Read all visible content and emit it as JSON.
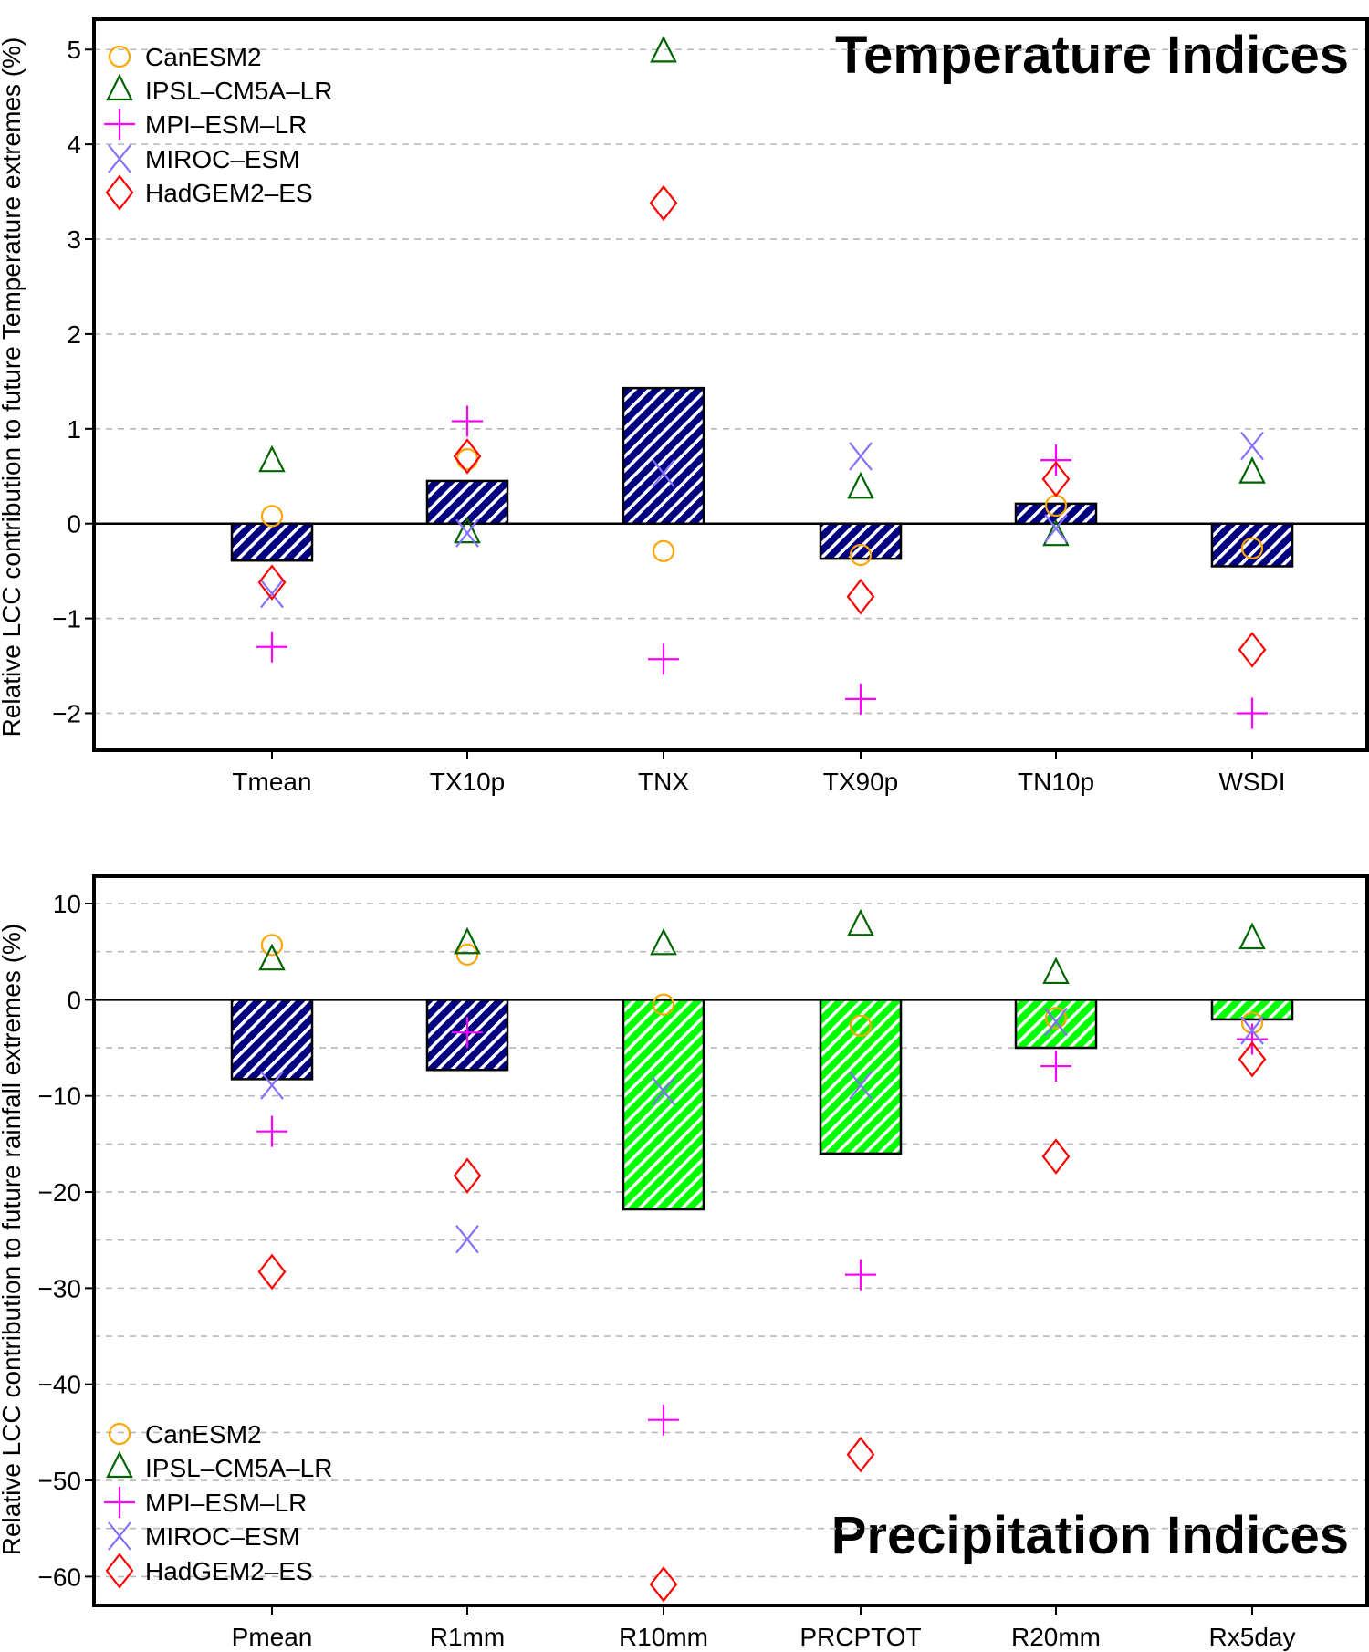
{
  "chart_data": [
    {
      "type": "bar",
      "title": "Temperature Indices",
      "ylabel": "Relative LCC contribution to future Temperature extremes (%)",
      "xlabel": "",
      "ylim": [
        -2.39,
        5.32
      ],
      "yticks": [
        -2,
        -1,
        0,
        1,
        2,
        3,
        4,
        5
      ],
      "grid": "horizontal dashed",
      "legend_position": "top-left",
      "categories": [
        "Tmean",
        "TX10p",
        "TNX",
        "TX90p",
        "TN10p",
        "WSDI"
      ],
      "bars": {
        "values": [
          -0.39,
          0.45,
          1.43,
          -0.37,
          0.21,
          -0.45
        ],
        "fill_colors": [
          "#000080",
          "#000080",
          "#000080",
          "#000080",
          "#000080",
          "#000080"
        ],
        "pattern": "diagonal hatch"
      },
      "series": [
        {
          "name": "CanESM2",
          "marker": "circle",
          "color": "#ffa500",
          "values": [
            0.08,
            0.68,
            -0.29,
            -0.33,
            0.19,
            -0.26
          ]
        },
        {
          "name": "IPSL-CM5A-LR",
          "marker": "triangle",
          "color": "#006400",
          "values": [
            0.65,
            -0.1,
            4.97,
            0.37,
            -0.13,
            0.53
          ]
        },
        {
          "name": "MPI-ESM-LR",
          "marker": "plus",
          "color": "#ff00ff",
          "values": [
            -1.3,
            1.08,
            -1.43,
            -1.85,
            0.67,
            -2.0
          ]
        },
        {
          "name": "MIROC-ESM",
          "marker": "cross",
          "color": "#8470ff",
          "values": [
            -0.74,
            -0.1,
            0.53,
            0.71,
            -0.05,
            0.82
          ]
        },
        {
          "name": "HadGEM2-ES",
          "marker": "diamond",
          "color": "#ff0000",
          "values": [
            -0.62,
            0.71,
            3.38,
            -0.77,
            0.47,
            -1.33
          ]
        }
      ]
    },
    {
      "type": "bar",
      "title": "Precipitation Indices",
      "ylabel": "Relative LCC contribution to future rainfall extremes (%)",
      "xlabel": "",
      "ylim": [
        -63.0,
        12.85
      ],
      "yticks": [
        -60,
        -50,
        -40,
        -30,
        -20,
        -10,
        0,
        10
      ],
      "gridlines": [
        -60,
        -55,
        -50,
        -45,
        -40,
        -35,
        -30,
        -25,
        -20,
        -15,
        -10,
        -5,
        5,
        10
      ],
      "grid": "horizontal dashed",
      "legend_position": "bottom-left",
      "categories": [
        "Pmean",
        "R1mm",
        "R10mm",
        "PRCPTOT",
        "R20mm",
        "Rx5day"
      ],
      "bars": {
        "values": [
          -8.26,
          -7.3,
          -21.8,
          -16.0,
          -5.0,
          -2.05
        ],
        "fill_colors": [
          "#000080",
          "#000080",
          "#00ff00",
          "#00ff00",
          "#00ff00",
          "#00ff00"
        ],
        "pattern": "diagonal hatch"
      },
      "series": [
        {
          "name": "CanESM2",
          "marker": "circle",
          "color": "#ffa500",
          "values": [
            5.7,
            4.7,
            -0.5,
            -2.7,
            -1.9,
            -2.4
          ]
        },
        {
          "name": "IPSL-CM5A-LR",
          "marker": "triangle",
          "color": "#006400",
          "values": [
            4.1,
            5.8,
            5.7,
            7.7,
            2.7,
            6.3
          ]
        },
        {
          "name": "MPI-ESM-LR",
          "marker": "plus",
          "color": "#ff00ff",
          "values": [
            -13.7,
            -3.4,
            -43.7,
            -28.6,
            -6.9,
            -4.1
          ]
        },
        {
          "name": "MIROC-ESM",
          "marker": "cross",
          "color": "#8470ff",
          "values": [
            -8.9,
            -24.9,
            -9.5,
            -8.9,
            -2.3,
            -3.2
          ]
        },
        {
          "name": "HadGEM2-ES",
          "marker": "diamond",
          "color": "#ff0000",
          "values": [
            -28.3,
            -18.3,
            -60.8,
            -47.3,
            -16.3,
            -6.2
          ]
        }
      ]
    }
  ]
}
